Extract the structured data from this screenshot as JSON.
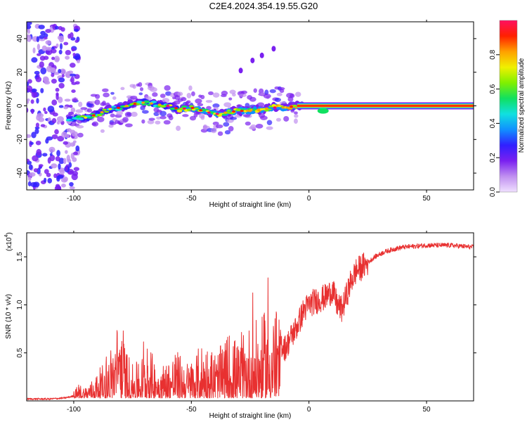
{
  "title": "C2E4.2024.354.19.55.G20",
  "chart_data": [
    {
      "type": "heatmap",
      "xlabel": "Height of straight line (km)",
      "ylabel": "Frequency (Hz)",
      "xlim": [
        -120,
        70
      ],
      "ylim": [
        -50,
        50
      ],
      "x_ticks": [
        -100,
        -50,
        0,
        50
      ],
      "y_ticks": [
        -40,
        -20,
        0,
        20,
        40
      ],
      "colorbar": {
        "label": "Normalized spectral amplitude",
        "range": [
          0.0,
          1.0
        ],
        "ticks": [
          0.0,
          0.2,
          0.4,
          0.6,
          0.8
        ],
        "tick_labels": [
          "0.0",
          "0.2",
          "0.4",
          "0.6",
          "0.8"
        ],
        "colors": [
          "#f0e0ff",
          "#c090f0",
          "#7a20f0",
          "#3020ff",
          "#1090ff",
          "#10e0e0",
          "#10e060",
          "#80f000",
          "#f0f000",
          "#ffa000",
          "#ff2000",
          "#ff1060"
        ]
      },
      "ridge": [
        {
          "x": -105,
          "y": -8
        },
        {
          "x": -95,
          "y": -7
        },
        {
          "x": -90,
          "y": -5
        },
        {
          "x": -85,
          "y": -2
        },
        {
          "x": -80,
          "y": -1
        },
        {
          "x": -75,
          "y": 1
        },
        {
          "x": -70,
          "y": 2
        },
        {
          "x": -65,
          "y": 1
        },
        {
          "x": -60,
          "y": 0
        },
        {
          "x": -55,
          "y": -2
        },
        {
          "x": -50,
          "y": -1
        },
        {
          "x": -45,
          "y": -3
        },
        {
          "x": -40,
          "y": -5
        },
        {
          "x": -35,
          "y": -4
        },
        {
          "x": -30,
          "y": -3
        },
        {
          "x": -25,
          "y": -3
        },
        {
          "x": -20,
          "y": -2
        },
        {
          "x": -15,
          "y": -1
        },
        {
          "x": -10,
          "y": -1
        },
        {
          "x": -5,
          "y": 0
        },
        {
          "x": 0,
          "y": 0
        },
        {
          "x": 5,
          "y": -3
        },
        {
          "x": 10,
          "y": -1
        },
        {
          "x": 15,
          "y": 0
        },
        {
          "x": 20,
          "y": 0
        },
        {
          "x": 30,
          "y": 0
        },
        {
          "x": 40,
          "y": 0
        },
        {
          "x": 50,
          "y": 0
        },
        {
          "x": 60,
          "y": 0
        },
        {
          "x": 70,
          "y": 0
        }
      ],
      "secondary_features": [
        {
          "x": -29,
          "y": 21
        },
        {
          "x": -24,
          "y": 27
        },
        {
          "x": -20,
          "y": 30
        },
        {
          "x": -15,
          "y": 34
        }
      ]
    },
    {
      "type": "line",
      "xlabel": "Height of straight line (km)",
      "ylabel": "SNR (10 * v/v)",
      "y_multiplier_label": "(x10",
      "y_multiplier_exp": "4",
      "y_multiplier_close": ")",
      "xlim": [
        -120,
        70
      ],
      "ylim": [
        0,
        1.75
      ],
      "x_ticks": [
        -100,
        -50,
        0,
        50
      ],
      "y_ticks": [
        0.5,
        1.0,
        1.5
      ],
      "y_tick_labels": [
        "0.5",
        "1.0",
        "1.5"
      ],
      "line_color": "#e83030",
      "series": [
        {
          "points": [
            {
              "x": -120,
              "y": 0.02
            },
            {
              "x": -110,
              "y": 0.02
            },
            {
              "x": -104,
              "y": 0.03
            },
            {
              "x": -100,
              "y": 0.05
            },
            {
              "x": -98,
              "y": 0.12
            },
            {
              "x": -95,
              "y": 0.1
            },
            {
              "x": -92,
              "y": 0.16
            },
            {
              "x": -89,
              "y": 0.25
            },
            {
              "x": -86,
              "y": 0.32
            },
            {
              "x": -83,
              "y": 0.52
            },
            {
              "x": -80,
              "y": 0.75
            },
            {
              "x": -78,
              "y": 0.45
            },
            {
              "x": -75,
              "y": 0.28
            },
            {
              "x": -72,
              "y": 0.32
            },
            {
              "x": -69,
              "y": 0.45
            },
            {
              "x": -66,
              "y": 0.36
            },
            {
              "x": -63,
              "y": 0.28
            },
            {
              "x": -60,
              "y": 0.33
            },
            {
              "x": -57,
              "y": 0.42
            },
            {
              "x": -54,
              "y": 0.35
            },
            {
              "x": -51,
              "y": 0.3
            },
            {
              "x": -48,
              "y": 0.38
            },
            {
              "x": -45,
              "y": 0.5
            },
            {
              "x": -42,
              "y": 0.44
            },
            {
              "x": -39,
              "y": 0.4
            },
            {
              "x": -36,
              "y": 0.48
            },
            {
              "x": -33,
              "y": 0.6
            },
            {
              "x": -30,
              "y": 0.45
            },
            {
              "x": -27,
              "y": 0.55
            },
            {
              "x": -24,
              "y": 0.68
            },
            {
              "x": -21,
              "y": 0.62
            },
            {
              "x": -18,
              "y": 0.78
            },
            {
              "x": -15,
              "y": 0.85
            },
            {
              "x": -12,
              "y": 0.6
            },
            {
              "x": -10,
              "y": 0.55
            },
            {
              "x": -8,
              "y": 0.65
            },
            {
              "x": -5,
              "y": 0.78
            },
            {
              "x": -2,
              "y": 0.95
            },
            {
              "x": 1,
              "y": 1.02
            },
            {
              "x": 4,
              "y": 1.05
            },
            {
              "x": 7,
              "y": 1.08
            },
            {
              "x": 10,
              "y": 1.15
            },
            {
              "x": 12,
              "y": 1.0
            },
            {
              "x": 14,
              "y": 0.95
            },
            {
              "x": 16,
              "y": 1.1
            },
            {
              "x": 18,
              "y": 1.25
            },
            {
              "x": 20,
              "y": 1.35
            },
            {
              "x": 24,
              "y": 1.42
            },
            {
              "x": 28,
              "y": 1.5
            },
            {
              "x": 32,
              "y": 1.55
            },
            {
              "x": 36,
              "y": 1.58
            },
            {
              "x": 40,
              "y": 1.6
            },
            {
              "x": 45,
              "y": 1.61
            },
            {
              "x": 50,
              "y": 1.62
            },
            {
              "x": 55,
              "y": 1.62
            },
            {
              "x": 60,
              "y": 1.62
            },
            {
              "x": 65,
              "y": 1.61
            },
            {
              "x": 70,
              "y": 1.6
            }
          ]
        }
      ]
    }
  ]
}
